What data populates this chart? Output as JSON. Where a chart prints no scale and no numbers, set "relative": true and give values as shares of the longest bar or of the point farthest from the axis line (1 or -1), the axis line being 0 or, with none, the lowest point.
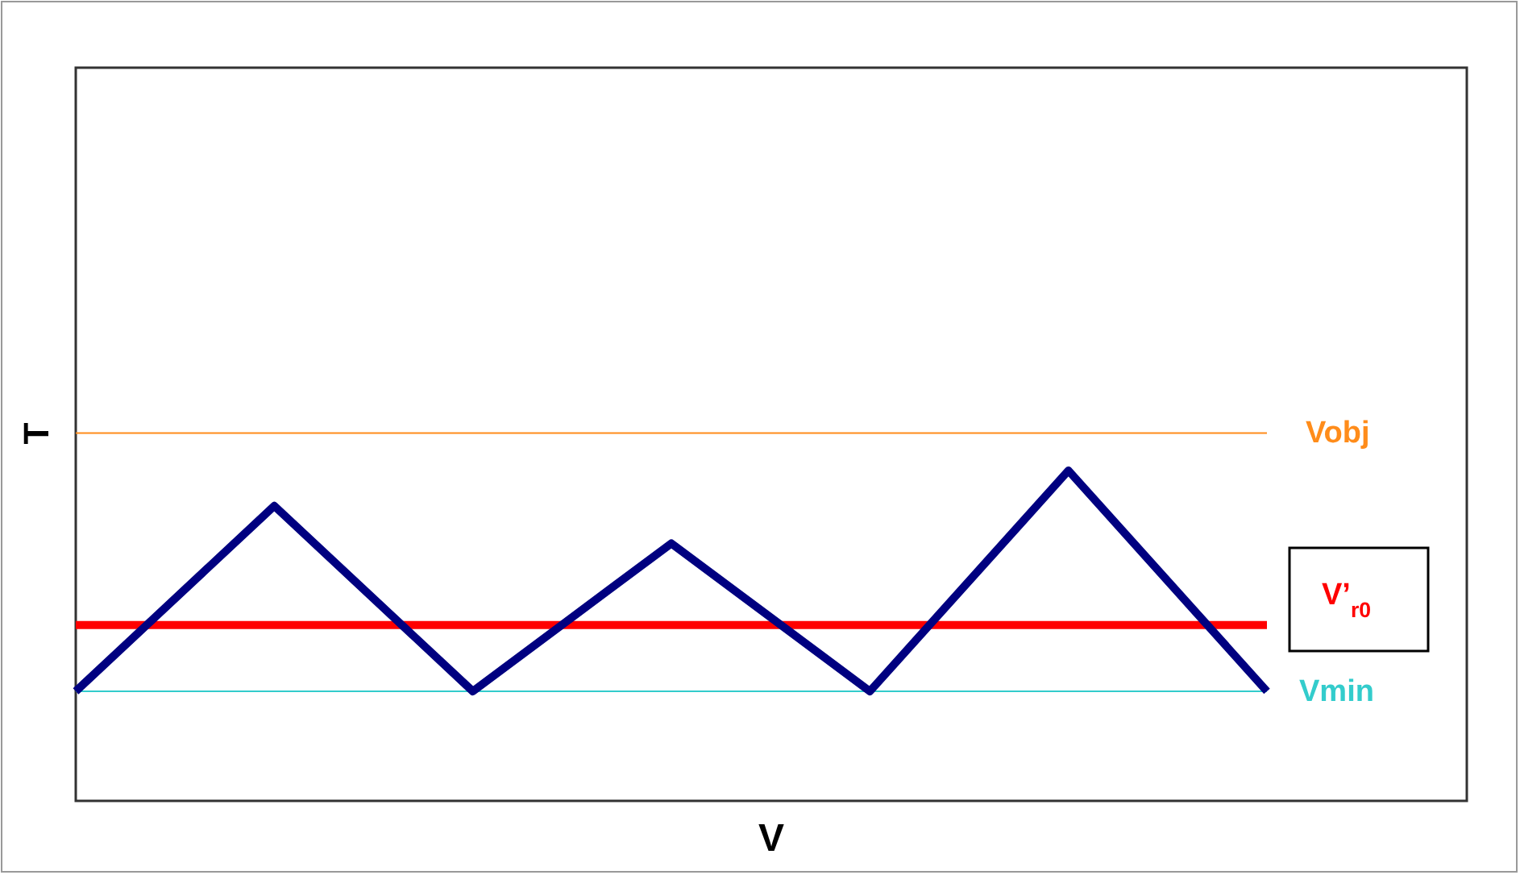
{
  "chart_data": {
    "type": "line",
    "relative": true,
    "xlabel": "V",
    "ylabel": "T",
    "categories": [
      null,
      null,
      null,
      null,
      null,
      null,
      null
    ],
    "series": [
      {
        "color": "#000080",
        "values": [
          0,
          0.84,
          0,
          0.67,
          0,
          1,
          0
        ]
      }
    ],
    "ref_lines": [
      {
        "axis": "y",
        "value": 1.17,
        "label": "Vobj",
        "color": "#ff8c1a"
      },
      {
        "axis": "y",
        "value": 0.3,
        "label": "V’$_{r0}$",
        "color": "#ff0000"
      },
      {
        "axis": "y",
        "value": 0,
        "label": "Vmin",
        "color": "#33cccc"
      }
    ],
    "grid": false,
    "marker": "none",
    "line_style": "solid"
  }
}
